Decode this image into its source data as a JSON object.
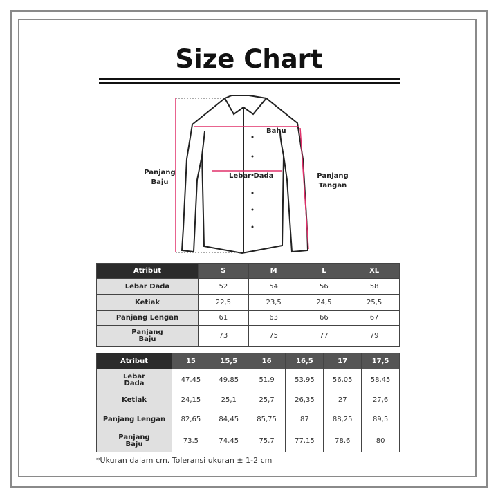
{
  "title": "Size Chart",
  "diagram_labels": {
    "bahu": "Bahu",
    "lebar_dada": "Lebar Dada",
    "panjang_baju": [
      "Panjang",
      "Baju"
    ],
    "panjang_tangan": [
      "Panjang",
      "Tangan"
    ]
  },
  "colors": {
    "measure_line": "#e0306a",
    "header_dark": "#2b2b2b",
    "header": "#555555",
    "attr_cell": "#e0e0e0"
  },
  "table1": {
    "headers": [
      "Atribut",
      "S",
      "M",
      "L",
      "XL"
    ],
    "rows": [
      [
        "Lebar Dada",
        "52",
        "54",
        "56",
        "58"
      ],
      [
        "Ketiak",
        "22,5",
        "23,5",
        "24,5",
        "25,5"
      ],
      [
        "Panjang Lengan",
        "61",
        "63",
        "66",
        "67"
      ],
      [
        "Panjang Baju",
        "73",
        "75",
        "77",
        "79"
      ]
    ]
  },
  "table2": {
    "headers": [
      "Atribut",
      "15",
      "15,5",
      "16",
      "16,5",
      "17",
      "17,5"
    ],
    "rows": [
      [
        "Lebar Dada",
        "47,45",
        "49,85",
        "51,9",
        "53,95",
        "56,05",
        "58,45"
      ],
      [
        "Ketiak",
        "24,15",
        "25,1",
        "25,7",
        "26,35",
        "27",
        "27,6"
      ],
      [
        "Panjang Lengan",
        "82,65",
        "84,45",
        "85,75",
        "87",
        "88,25",
        "89,5"
      ],
      [
        "Panjang Baju",
        "73,5",
        "74,45",
        "75,7",
        "77,15",
        "78,6",
        "80"
      ]
    ]
  },
  "note": "*Ukuran dalam cm. Toleransi ukuran ± 1-2 cm"
}
